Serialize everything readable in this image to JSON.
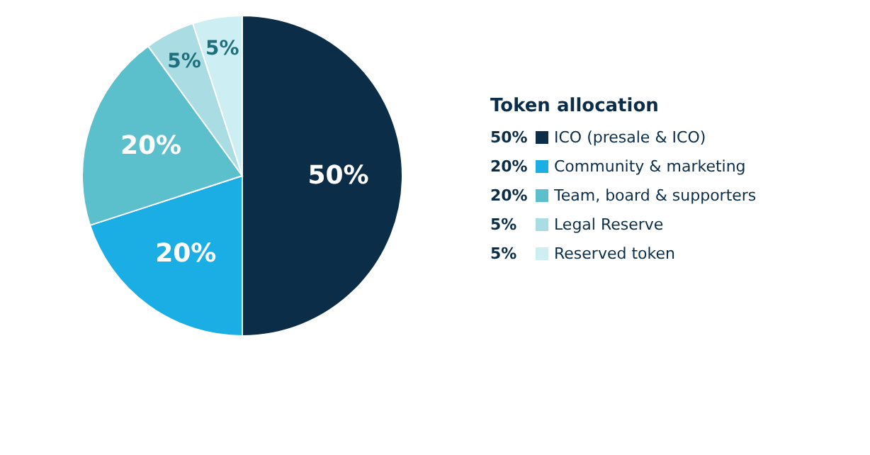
{
  "chart_data": {
    "type": "pie",
    "legend_title": "Token allocation",
    "legend": "right",
    "data_labels": true,
    "categories": [
      "ICO (presale & ICO)",
      "Community & marketing",
      "Team, board & supporters",
      "Legal Reserve",
      "Reserved token"
    ],
    "values": [
      50,
      20,
      20,
      5,
      5
    ],
    "value_labels": [
      "50%",
      "20%",
      "20%",
      "5%",
      "5%"
    ],
    "colors": [
      "#0c2d48",
      "#1aaee5",
      "#5bbfcc",
      "#a9dde3",
      "#cdeef3"
    ]
  }
}
